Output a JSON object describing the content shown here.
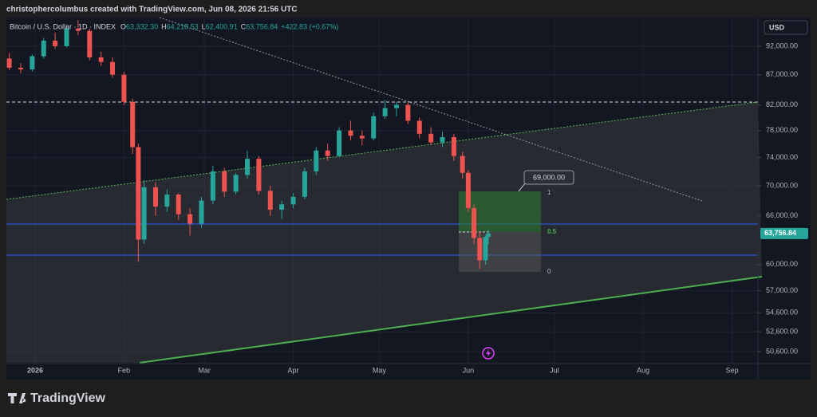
{
  "header": "christophercolumbus created with TradingView.com, Jun 08, 2026 21:56 UTC",
  "brand": "TradingView",
  "chart_data": {
    "type": "candlestick",
    "legend": {
      "symbol": "Bitcoin / U.S. Dollar · 1D · INDEX",
      "ohlc": [
        {
          "prefix": "O",
          "value": "63,332.30"
        },
        {
          "prefix": "H",
          "value": "64,218.53"
        },
        {
          "prefix": "L",
          "value": "62,400.91"
        },
        {
          "prefix": "C",
          "value": "63,756.84"
        }
      ],
      "change": "+422.83 (+0.67%)"
    },
    "currency": "USD",
    "last_price_label": "63,756.84",
    "annotations": {
      "target": "69,000.00",
      "fib": [
        "1",
        "0.5",
        "0"
      ]
    },
    "up_color": "#26a69a",
    "down_color": "#ef5350",
    "log_scale": true,
    "x": [
      "2025-12-23",
      "2025-12-27",
      "2025-12-31",
      "2026-01-04",
      "2026-01-08",
      "2026-01-12",
      "2026-01-16",
      "2026-01-20",
      "2026-01-24",
      "2026-01-28",
      "2026-02-01",
      "2026-02-04",
      "2026-02-06",
      "2026-02-08",
      "2026-02-12",
      "2026-02-16",
      "2026-02-20",
      "2026-02-24",
      "2026-02-28",
      "2026-03-04",
      "2026-03-08",
      "2026-03-12",
      "2026-03-16",
      "2026-03-20",
      "2026-03-24",
      "2026-03-28",
      "2026-04-01",
      "2026-04-05",
      "2026-04-09",
      "2026-04-13",
      "2026-04-17",
      "2026-04-21",
      "2026-04-25",
      "2026-04-29",
      "2026-05-03",
      "2026-05-07",
      "2026-05-11",
      "2026-05-15",
      "2026-05-19",
      "2026-05-23",
      "2026-05-27",
      "2026-05-30",
      "2026-06-01",
      "2026-06-03",
      "2026-06-05",
      "2026-06-07",
      "2026-06-08"
    ],
    "open": [
      89800,
      88200,
      87900,
      90200,
      93000,
      92000,
      95200,
      94800,
      90000,
      89200,
      87000,
      82500,
      75500,
      63000,
      69800,
      67200,
      68800,
      66200,
      65000,
      68000,
      72000,
      69200,
      71500,
      73800,
      69300,
      66800,
      67500,
      68500,
      72000,
      75000,
      74200,
      78000,
      77200,
      76800,
      80200,
      81500,
      82000,
      79500,
      77500,
      76200,
      77000,
      74200,
      71800,
      67000,
      63200,
      60500,
      63332.3
    ],
    "high": [
      90800,
      89000,
      90500,
      93500,
      94500,
      95800,
      96800,
      95200,
      91000,
      90000,
      87500,
      83000,
      76000,
      70800,
      70500,
      69500,
      69000,
      67000,
      68500,
      72800,
      72500,
      71800,
      75000,
      74200,
      70000,
      68000,
      69000,
      72500,
      75500,
      76000,
      78500,
      79500,
      78000,
      80800,
      82800,
      82500,
      82400,
      80000,
      78500,
      77800,
      77500,
      74800,
      72200,
      67500,
      64000,
      63500,
      64218.53
    ],
    "low": [
      87800,
      87200,
      87500,
      89800,
      91500,
      91800,
      94000,
      89500,
      88500,
      86500,
      82000,
      74500,
      60300,
      62500,
      66000,
      66500,
      65500,
      63500,
      64500,
      67500,
      68500,
      68800,
      71000,
      68800,
      66000,
      65600,
      67000,
      68200,
      71500,
      73500,
      74000,
      76500,
      75800,
      76500,
      79800,
      80200,
      79000,
      76800,
      75800,
      75500,
      73500,
      71000,
      66500,
      62500,
      59500,
      60000,
      62400.91
    ],
    "close": [
      88200,
      87900,
      90200,
      93000,
      92000,
      95200,
      94800,
      90000,
      89200,
      87000,
      82500,
      75500,
      63000,
      69800,
      67200,
      68800,
      66200,
      65000,
      68000,
      72000,
      69200,
      71500,
      73800,
      69300,
      66800,
      67500,
      68500,
      72000,
      75000,
      74200,
      78000,
      77200,
      76800,
      80200,
      81500,
      82000,
      79500,
      77500,
      76200,
      77000,
      74200,
      71800,
      67000,
      63200,
      60500,
      63332.3,
      63756.84
    ],
    "xlim": [
      "2025-12-22",
      "2026-09-10"
    ],
    "xticks": [
      {
        "value": "2026-01-01",
        "label": "2026"
      },
      {
        "value": "2026-02-01",
        "label": "Feb"
      },
      {
        "value": "2026-03-01",
        "label": "Mar"
      },
      {
        "value": "2026-04-01",
        "label": "Apr"
      },
      {
        "value": "2026-05-01",
        "label": "May"
      },
      {
        "value": "2026-06-01",
        "label": "Jun"
      },
      {
        "value": "2026-07-01",
        "label": "Jul"
      },
      {
        "value": "2026-08-01",
        "label": "Aug"
      },
      {
        "value": "2026-09-01",
        "label": "Sep"
      }
    ],
    "ylim": [
      49500,
      97300
    ],
    "yticks": [
      {
        "value": 50600,
        "label": "50,600.00"
      },
      {
        "value": 52600,
        "label": "52,600.00"
      },
      {
        "value": 54600,
        "label": "54,600.00"
      },
      {
        "value": 57000,
        "label": "57,000.00"
      },
      {
        "value": 60000,
        "label": "60,000.00"
      },
      {
        "value": 66000,
        "label": "66,000.00"
      },
      {
        "value": 70000,
        "label": "70,000.00"
      },
      {
        "value": 74000,
        "label": "74,000.00"
      },
      {
        "value": 78000,
        "label": "78,000.00"
      },
      {
        "value": 82000,
        "label": "82,000.00"
      },
      {
        "value": 87000,
        "label": "87,000.00"
      },
      {
        "value": 92000,
        "label": "92,000.00"
      }
    ],
    "grid": true
  }
}
